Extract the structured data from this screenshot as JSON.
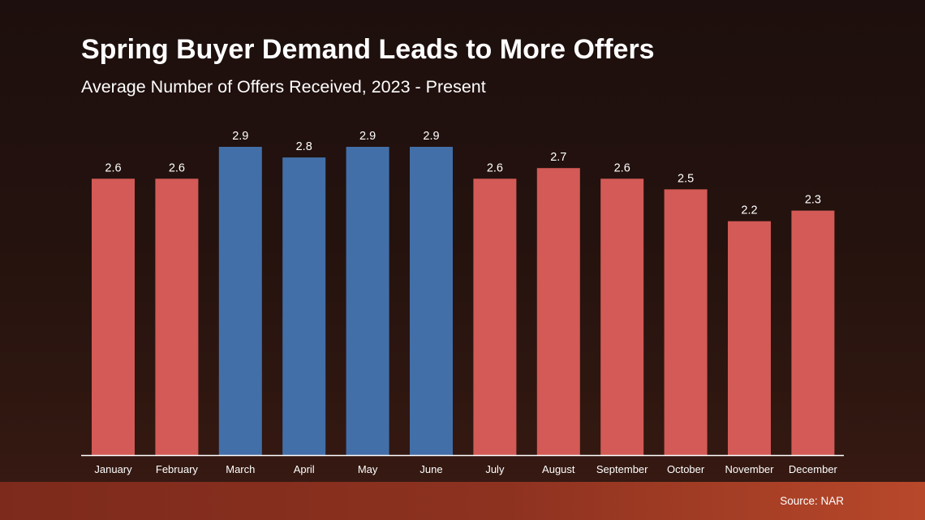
{
  "header": {
    "title": "Spring Buyer Demand Leads to More Offers",
    "subtitle": "Average Number of Offers Received, 2023 - Present"
  },
  "footer": {
    "source": "Source: NAR"
  },
  "colors": {
    "highlight": "#426fa8",
    "default": "#d35a56",
    "axis": "#ffffff",
    "text": "#ffffff"
  },
  "chart_data": {
    "type": "bar",
    "title": "Spring Buyer Demand Leads to More Offers",
    "subtitle": "Average Number of Offers Received, 2023 - Present",
    "xlabel": "",
    "ylabel": "",
    "ylim": [
      0,
      2.9
    ],
    "grid": false,
    "categories": [
      "January",
      "February",
      "March",
      "April",
      "May",
      "June",
      "July",
      "August",
      "September",
      "October",
      "November",
      "December"
    ],
    "values": [
      2.6,
      2.6,
      2.9,
      2.8,
      2.9,
      2.9,
      2.6,
      2.7,
      2.6,
      2.5,
      2.2,
      2.3
    ],
    "value_labels": [
      "2.6",
      "2.6",
      "2.9",
      "2.8",
      "2.9",
      "2.9",
      "2.6",
      "2.7",
      "2.6",
      "2.5",
      "2.2",
      "2.3"
    ],
    "highlighted": [
      false,
      false,
      true,
      true,
      true,
      true,
      false,
      false,
      false,
      false,
      false,
      false
    ]
  }
}
